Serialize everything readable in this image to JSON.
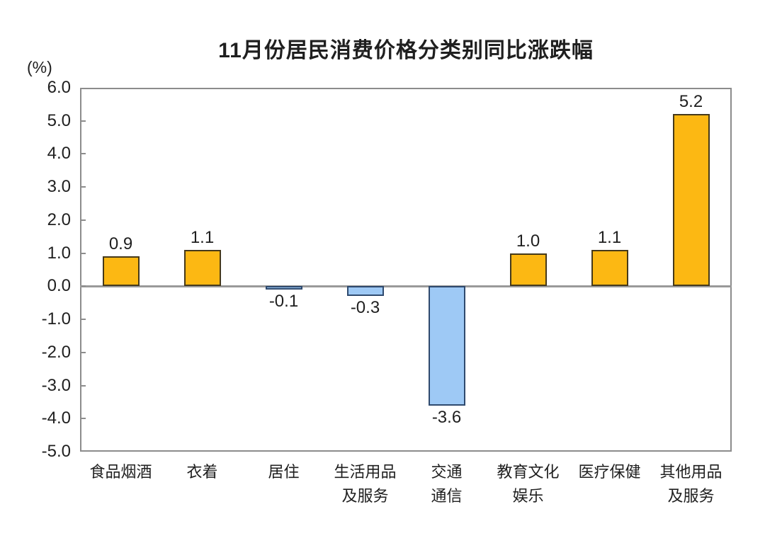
{
  "chart_data": {
    "type": "bar",
    "title": "11月份居民消费价格分类别同比涨跌幅",
    "unit_label": "(%)",
    "category_names": [
      "食品烟酒",
      "衣着",
      "居住",
      "生活用品及服务",
      "交通通信",
      "教育文化娱乐",
      "医疗保健",
      "其他用品及服务"
    ],
    "categories": [
      [
        "食品烟酒"
      ],
      [
        "衣着"
      ],
      [
        "居住"
      ],
      [
        "生活用品",
        "及服务"
      ],
      [
        "交通",
        "通信"
      ],
      [
        "教育文化",
        "娱乐"
      ],
      [
        "医疗保健"
      ],
      [
        "其他用品",
        "及服务"
      ]
    ],
    "values": [
      0.9,
      1.1,
      -0.1,
      -0.3,
      -3.6,
      1.0,
      1.1,
      5.2
    ],
    "value_labels": [
      "0.9",
      "1.1",
      "-0.1",
      "-0.3",
      "-3.6",
      "1.0",
      "1.1",
      "5.2"
    ],
    "ylim": [
      -5.0,
      6.0
    ],
    "ytick_step": 1.0,
    "ytick_labels": [
      "6.0",
      "5.0",
      "4.0",
      "3.0",
      "2.0",
      "1.0",
      "0.0",
      "-1.0",
      "-2.0",
      "-3.0",
      "-4.0",
      "-5.0"
    ],
    "grid": false,
    "legend_position": "none",
    "colors": {
      "positive_fill": "#FCB813",
      "positive_border": "#45391A",
      "negative_fill": "#9EC9F5",
      "negative_border": "#2F4A6E",
      "axis_line": "#8C8C8C",
      "zero_line": "#999999",
      "text": "#1F1F1F"
    }
  }
}
